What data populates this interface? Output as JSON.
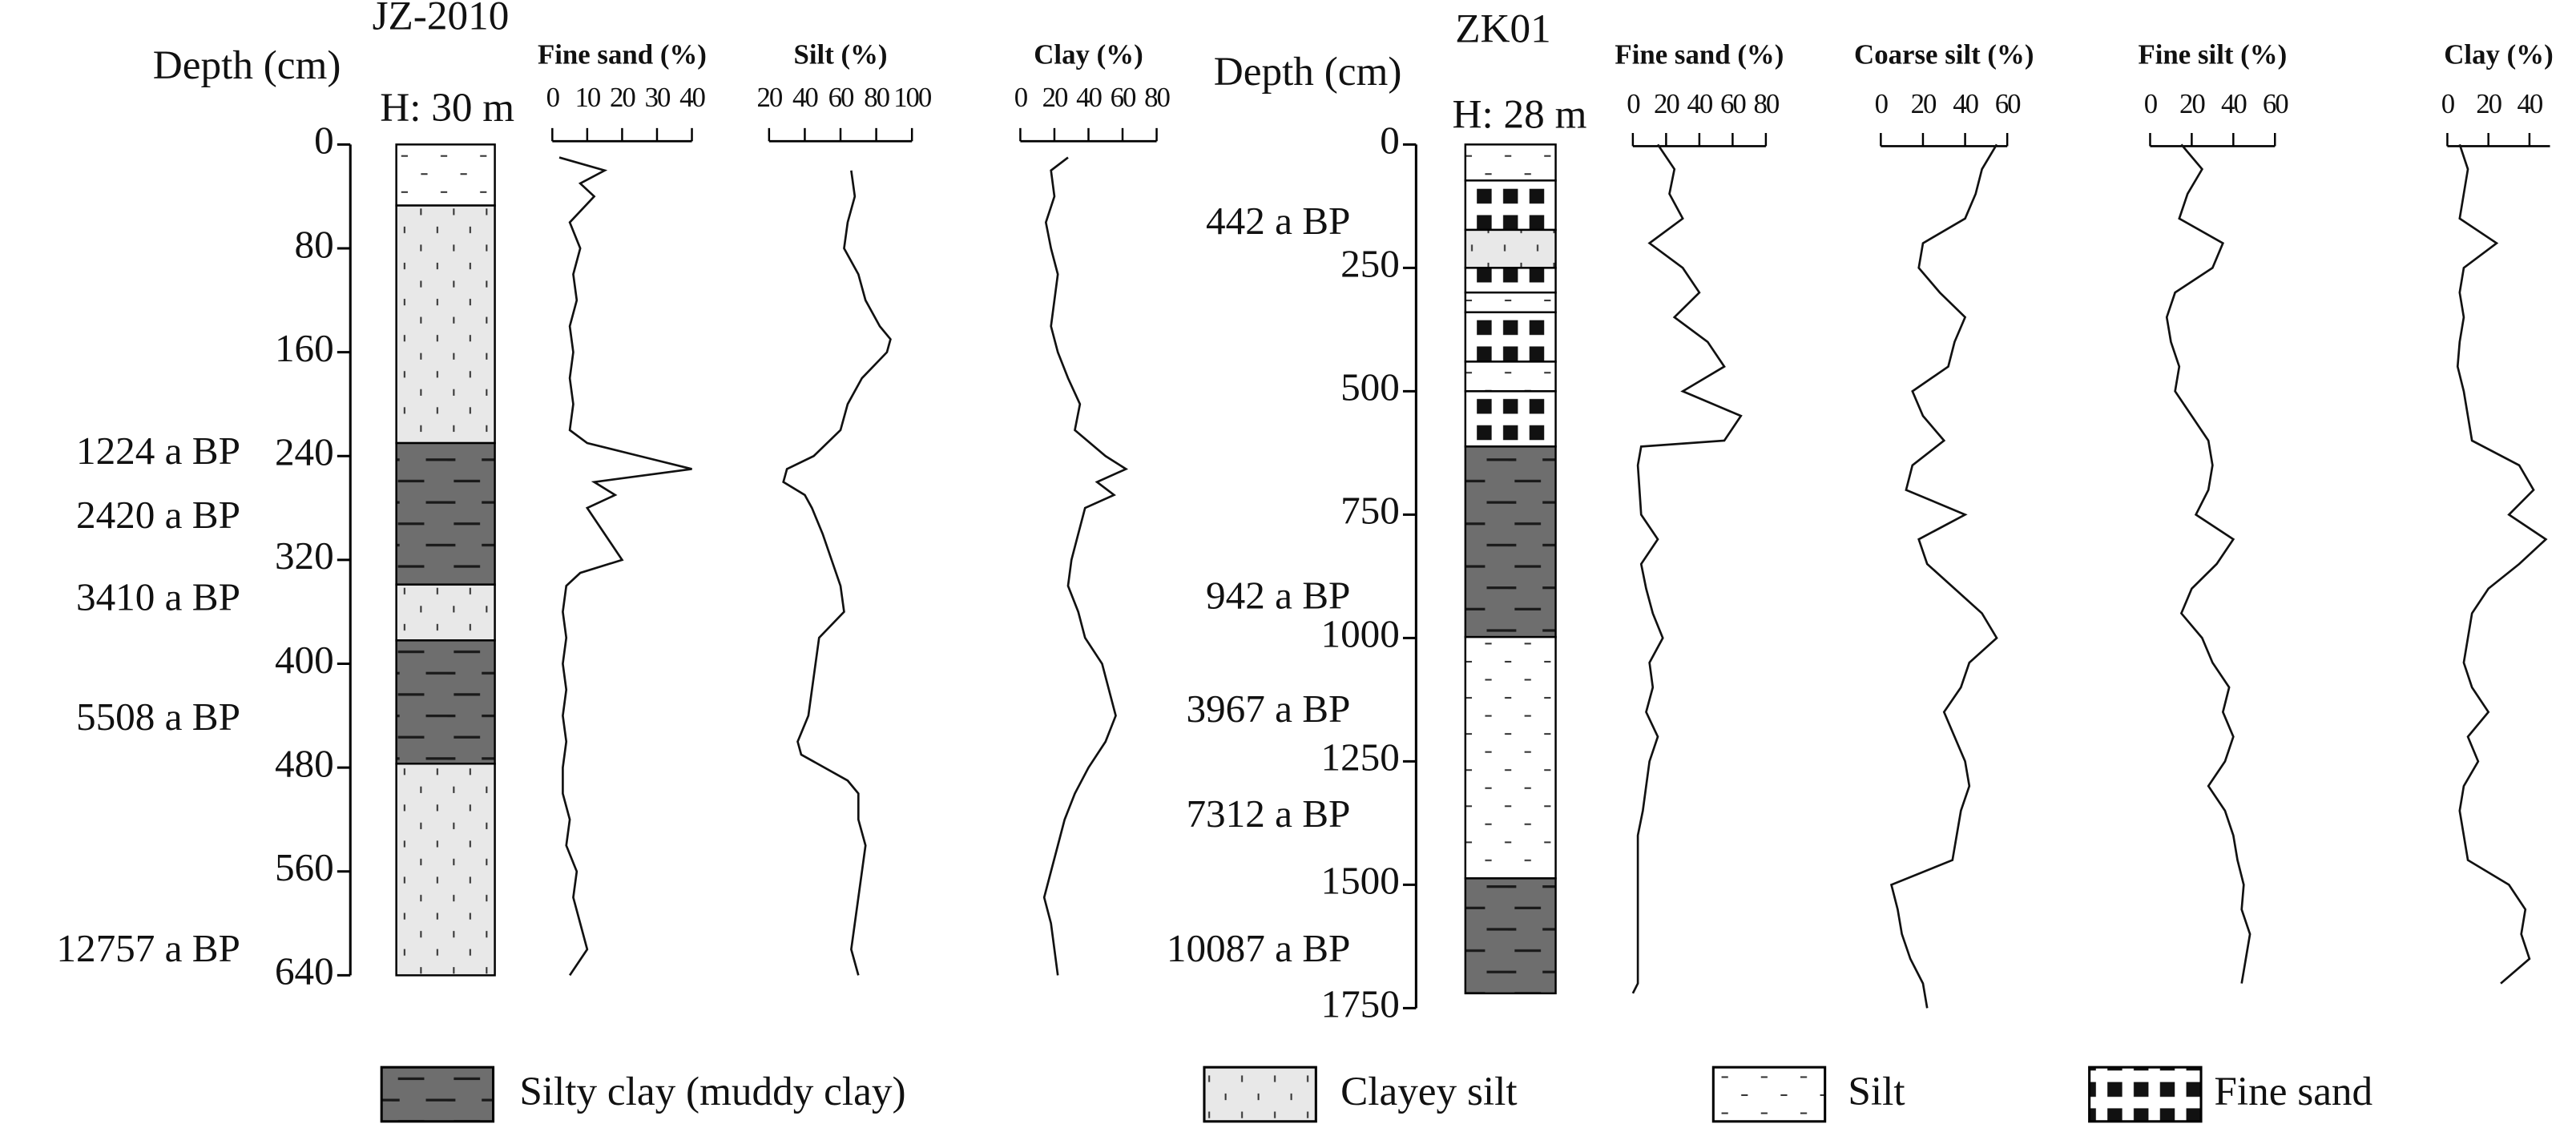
{
  "chart_data": [
    {
      "type": "depth-profile",
      "title": "JZ-2010",
      "subtitle": "H: 30 m",
      "ylabel": "Depth (cm)",
      "ylim": [
        0,
        640
      ],
      "yticks": [
        0,
        80,
        160,
        240,
        320,
        400,
        480,
        560,
        640
      ],
      "age_labels": [
        "1224 a BP",
        "2420 a BP",
        "3410 a BP",
        "5508 a BP",
        "12757 a BP"
      ],
      "layers": [
        {
          "top": 0,
          "bottom": 47,
          "lithology": 2
        },
        {
          "top": 47,
          "bottom": 230,
          "lithology": 1
        },
        {
          "top": 230,
          "bottom": 339,
          "lithology": 0
        },
        {
          "top": 339,
          "bottom": 382,
          "lithology": 1
        },
        {
          "top": 382,
          "bottom": 477,
          "lithology": 0
        },
        {
          "top": 477,
          "bottom": 640,
          "lithology": 1
        }
      ],
      "series": [
        {
          "name": "Fine sand (%)",
          "xlim": [
            0,
            40
          ],
          "xticks": [
            0,
            10,
            20,
            30,
            40
          ],
          "depth": [
            10,
            20,
            30,
            40,
            60,
            80,
            100,
            120,
            140,
            160,
            180,
            200,
            220,
            230,
            240,
            250,
            260,
            270,
            280,
            300,
            320,
            330,
            340,
            360,
            380,
            400,
            420,
            440,
            460,
            480,
            500,
            520,
            540,
            560,
            580,
            600,
            620,
            640
          ],
          "values": [
            2,
            15,
            8,
            12,
            5,
            8,
            6,
            7,
            5,
            6,
            5,
            6,
            5,
            10,
            25,
            40,
            12,
            18,
            10,
            15,
            20,
            8,
            4,
            3,
            4,
            3,
            4,
            3,
            4,
            3,
            3,
            5,
            4,
            7,
            6,
            8,
            10,
            5
          ]
        },
        {
          "name": "Silt (%)",
          "xlim": [
            20,
            100
          ],
          "xticks": [
            20,
            40,
            60,
            80,
            100
          ],
          "depth": [
            20,
            40,
            60,
            80,
            100,
            120,
            140,
            150,
            160,
            180,
            200,
            220,
            240,
            250,
            260,
            270,
            280,
            300,
            320,
            340,
            360,
            380,
            400,
            420,
            440,
            460,
            470,
            490,
            500,
            520,
            540,
            560,
            580,
            600,
            620,
            640
          ],
          "values": [
            66,
            68,
            64,
            62,
            70,
            74,
            82,
            88,
            86,
            72,
            64,
            60,
            45,
            30,
            28,
            40,
            44,
            50,
            55,
            60,
            62,
            48,
            46,
            44,
            42,
            36,
            38,
            64,
            70,
            70,
            74,
            72,
            70,
            68,
            66,
            70
          ]
        },
        {
          "name": "Clay (%)",
          "xlim": [
            0,
            80
          ],
          "xticks": [
            0,
            20,
            40,
            60,
            80
          ],
          "depth": [
            10,
            20,
            40,
            60,
            80,
            100,
            120,
            140,
            160,
            180,
            200,
            220,
            240,
            250,
            260,
            270,
            280,
            300,
            320,
            340,
            360,
            380,
            400,
            420,
            440,
            460,
            480,
            500,
            520,
            540,
            560,
            580,
            600,
            620,
            640
          ],
          "values": [
            28,
            18,
            20,
            15,
            18,
            22,
            20,
            18,
            22,
            28,
            35,
            32,
            50,
            62,
            45,
            55,
            38,
            34,
            30,
            28,
            34,
            38,
            48,
            52,
            56,
            50,
            40,
            32,
            26,
            22,
            18,
            14,
            18,
            20,
            22
          ]
        }
      ]
    },
    {
      "type": "depth-profile",
      "title": "ZK01",
      "subtitle": "H: 28 m",
      "ylabel": "Depth (cm)",
      "ylim": [
        0,
        1750
      ],
      "yticks": [
        0,
        250,
        500,
        750,
        1000,
        1250,
        1500,
        1750
      ],
      "age_labels": [
        "442 a BP",
        "942 a BP",
        "3967 a BP",
        "7312 a BP",
        "10087 a BP"
      ],
      "layers": [
        {
          "top": 0,
          "bottom": 73,
          "lithology": 2
        },
        {
          "top": 73,
          "bottom": 173,
          "lithology": 3
        },
        {
          "top": 173,
          "bottom": 250,
          "lithology": 1
        },
        {
          "top": 250,
          "bottom": 300,
          "lithology": 3
        },
        {
          "top": 300,
          "bottom": 340,
          "lithology": 2
        },
        {
          "top": 340,
          "bottom": 440,
          "lithology": 3
        },
        {
          "top": 440,
          "bottom": 500,
          "lithology": 2
        },
        {
          "top": 500,
          "bottom": 612,
          "lithology": 3
        },
        {
          "top": 612,
          "bottom": 998,
          "lithology": 0
        },
        {
          "top": 998,
          "bottom": 1487,
          "lithology": 2
        },
        {
          "top": 1487,
          "bottom": 1720,
          "lithology": 0
        }
      ],
      "series": [
        {
          "name": "Fine sand (%)",
          "xlim": [
            0,
            80
          ],
          "xticks": [
            0,
            20,
            40,
            60,
            80
          ],
          "depth": [
            0,
            50,
            100,
            150,
            200,
            250,
            300,
            350,
            400,
            450,
            500,
            550,
            600,
            612,
            650,
            750,
            800,
            850,
            900,
            950,
            1000,
            1050,
            1100,
            1150,
            1200,
            1250,
            1300,
            1350,
            1400,
            1450,
            1500,
            1600,
            1700,
            1720
          ],
          "values": [
            15,
            25,
            22,
            30,
            10,
            30,
            40,
            25,
            45,
            55,
            30,
            65,
            55,
            5,
            3,
            5,
            15,
            5,
            8,
            12,
            18,
            10,
            12,
            8,
            15,
            10,
            8,
            6,
            3,
            3,
            3,
            3,
            3,
            0
          ]
        },
        {
          "name": "Coarse silt (%)",
          "xlim": [
            0,
            60
          ],
          "xticks": [
            0,
            20,
            40,
            60
          ],
          "depth": [
            0,
            50,
            100,
            150,
            200,
            250,
            300,
            350,
            400,
            450,
            500,
            550,
            600,
            650,
            700,
            750,
            800,
            850,
            900,
            950,
            1000,
            1050,
            1100,
            1150,
            1200,
            1250,
            1300,
            1350,
            1400,
            1450,
            1500,
            1550,
            1600,
            1650,
            1700,
            1750
          ],
          "values": [
            55,
            48,
            45,
            40,
            20,
            18,
            28,
            40,
            35,
            32,
            15,
            20,
            30,
            15,
            12,
            40,
            18,
            22,
            35,
            48,
            55,
            42,
            38,
            30,
            35,
            40,
            42,
            38,
            36,
            34,
            5,
            8,
            10,
            14,
            20,
            22
          ]
        },
        {
          "name": "Fine silt (%)",
          "xlim": [
            0,
            60
          ],
          "xticks": [
            0,
            20,
            40,
            60
          ],
          "depth": [
            0,
            50,
            100,
            150,
            200,
            250,
            300,
            350,
            400,
            450,
            500,
            550,
            600,
            650,
            700,
            750,
            800,
            850,
            900,
            950,
            1000,
            1050,
            1100,
            1150,
            1200,
            1250,
            1300,
            1350,
            1400,
            1450,
            1500,
            1550,
            1600,
            1650,
            1700
          ],
          "values": [
            15,
            25,
            18,
            14,
            35,
            30,
            12,
            8,
            10,
            14,
            12,
            20,
            28,
            30,
            28,
            22,
            40,
            32,
            20,
            15,
            25,
            30,
            38,
            35,
            40,
            36,
            28,
            36,
            40,
            42,
            45,
            44,
            48,
            46,
            44
          ]
        },
        {
          "name": "Clay (%)",
          "xlim": [
            0,
            50
          ],
          "xticks": [
            0,
            20,
            40
          ],
          "depth": [
            0,
            50,
            100,
            150,
            200,
            250,
            300,
            350,
            400,
            450,
            500,
            550,
            600,
            650,
            700,
            750,
            800,
            850,
            900,
            950,
            1000,
            1050,
            1100,
            1150,
            1200,
            1250,
            1300,
            1350,
            1400,
            1450,
            1500,
            1550,
            1600,
            1650,
            1700
          ],
          "values": [
            6,
            10,
            8,
            6,
            24,
            8,
            6,
            8,
            6,
            5,
            8,
            10,
            12,
            35,
            42,
            30,
            48,
            35,
            20,
            12,
            10,
            8,
            12,
            20,
            10,
            15,
            8,
            6,
            8,
            10,
            30,
            38,
            36,
            40,
            26
          ]
        }
      ]
    }
  ],
  "legend": [
    {
      "label": "Silty clay (muddy clay)",
      "pattern": "dashes-dark"
    },
    {
      "label": "Clayey silt",
      "pattern": "ticks-grey"
    },
    {
      "label": "Silt",
      "pattern": "dashes-white"
    },
    {
      "label": "Fine sand",
      "pattern": "squares"
    }
  ]
}
